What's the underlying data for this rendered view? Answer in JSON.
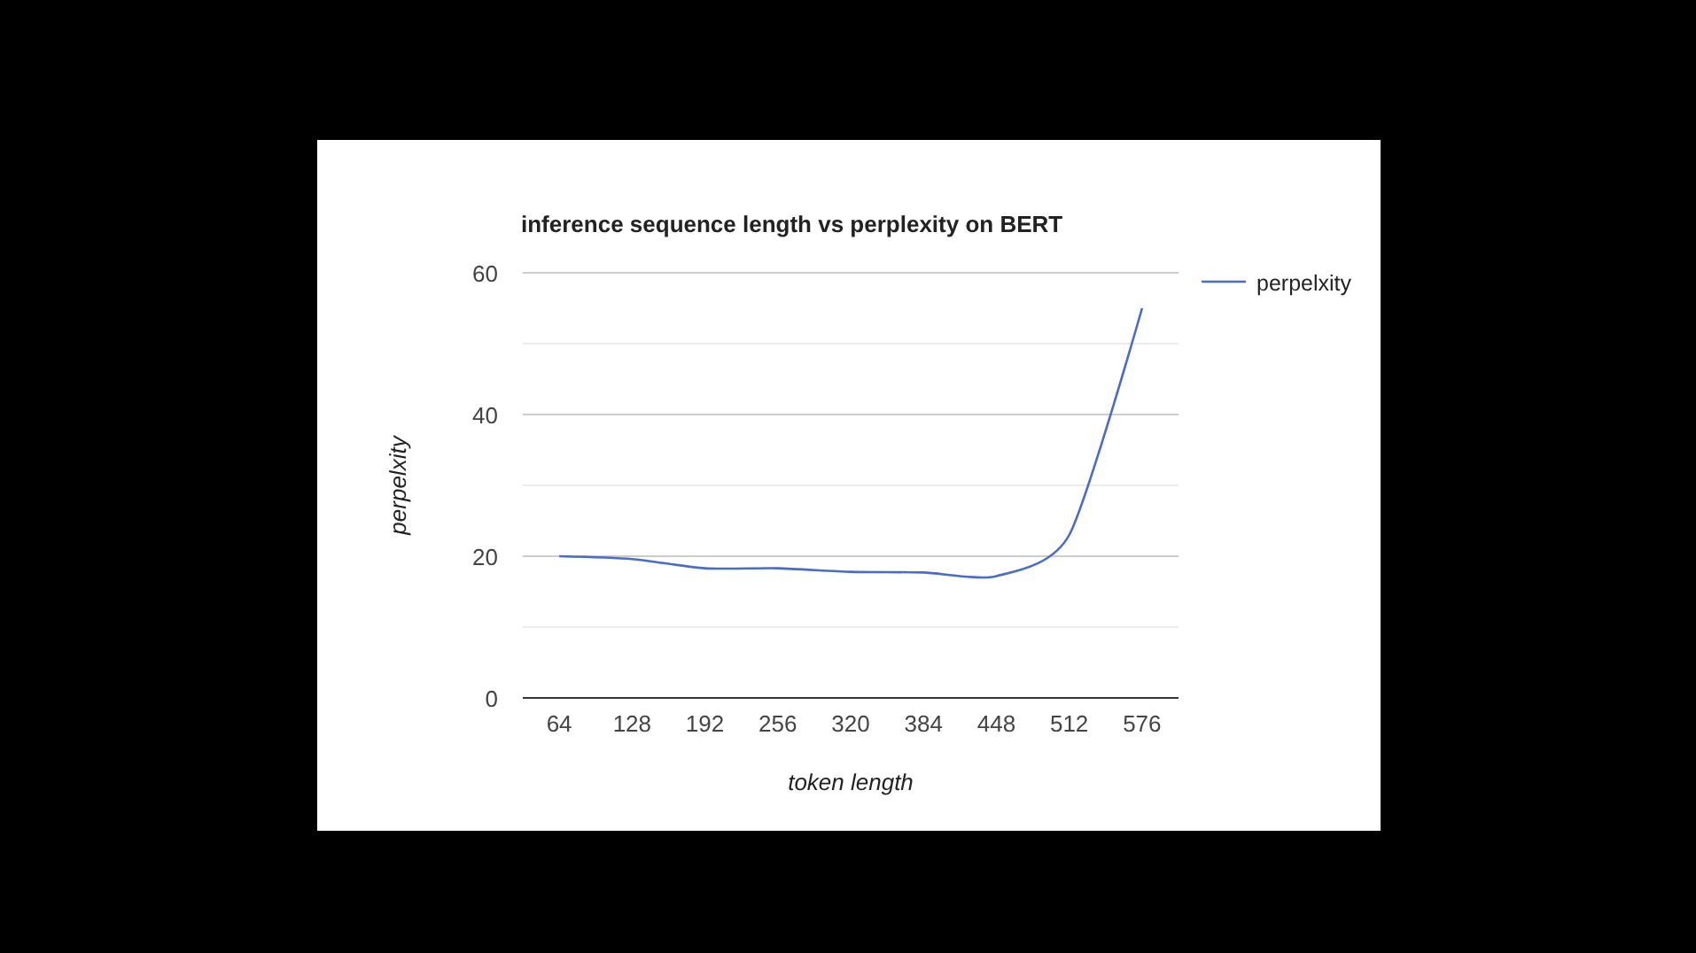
{
  "chart_data": {
    "type": "line",
    "title": "inference sequence length vs perplexity on BERT",
    "xlabel": "token length",
    "ylabel": "perpelxity",
    "categories": [
      "64",
      "128",
      "192",
      "256",
      "320",
      "384",
      "448",
      "512",
      "576"
    ],
    "series": [
      {
        "name": "perpelxity",
        "color": "#4a6bc8",
        "values": [
          20,
          19.6,
          18.3,
          18.3,
          17.8,
          17.7,
          17.2,
          23,
          55
        ]
      }
    ],
    "ylim": [
      0,
      60
    ],
    "yticks": [
      0,
      {
        "value": 10,
        "label": null
      },
      20,
      {
        "value": 30,
        "label": null
      },
      40,
      {
        "value": 50,
        "label": null
      },
      60
    ],
    "grid": "y",
    "legend": "right",
    "marker": "none",
    "line_style": "solid"
  }
}
